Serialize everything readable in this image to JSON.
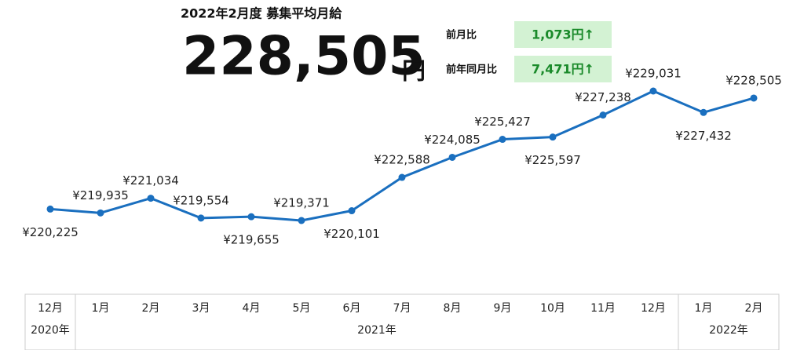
{
  "chart_data": {
    "type": "line",
    "title": "2022年2月度 募集平均月給",
    "headline": {
      "value": "228,505",
      "unit": "円"
    },
    "comparisons": [
      {
        "label": "前月比",
        "value": "1,073円↑"
      },
      {
        "label": "前年同月比",
        "value": "7,471円↑"
      }
    ],
    "categories": [
      "12月",
      "1月",
      "2月",
      "3月",
      "4月",
      "5月",
      "6月",
      "7月",
      "8月",
      "9月",
      "10月",
      "11月",
      "12月",
      "1月",
      "2月"
    ],
    "year_groups": [
      {
        "label": "2020年",
        "count": 1
      },
      {
        "label": "2021年",
        "count": 12
      },
      {
        "label": "2022年",
        "count": 2
      }
    ],
    "color": "#1a6fbf",
    "values": [
      220225,
      219935,
      221034,
      219554,
      219655,
      219371,
      220101,
      222588,
      224085,
      225427,
      225597,
      227238,
      229031,
      227432,
      228505
    ],
    "value_labels": [
      "¥220,225",
      "¥219,935",
      "¥221,034",
      "¥219,554",
      "¥219,655",
      "¥219,371",
      "¥220,101",
      "¥222,588",
      "¥224,085",
      "¥225,427",
      "¥225,597",
      "¥227,238",
      "¥229,031",
      "¥227,432",
      "¥228,505"
    ]
  }
}
